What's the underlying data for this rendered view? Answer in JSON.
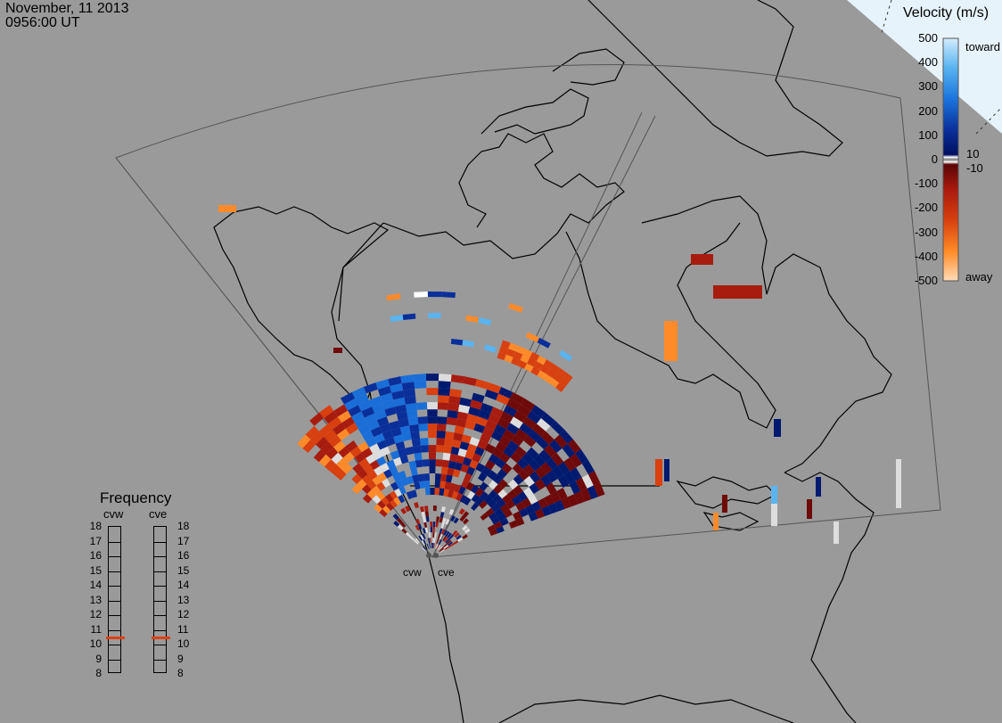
{
  "header": {
    "date": "November, 11 2013",
    "time": "0956:00 UT"
  },
  "colors": {
    "background": "#9a9a9a",
    "day_region": "#e6f3fb"
  },
  "velocity_scale": {
    "title": "Velocity (m/s)",
    "ticks": [
      "500",
      "400",
      "300",
      "200",
      "100",
      "0",
      "-100",
      "-200",
      "-300",
      "-400",
      "-500"
    ],
    "toward_label": "toward",
    "away_label": "away",
    "low_plus": "10",
    "low_minus": "-10",
    "gradient_toward": [
      "#c6e6fa",
      "#5ab4f0",
      "#1a6ed8",
      "#0a2f9a",
      "#001a70"
    ],
    "gradient_away": [
      "#6e0a0a",
      "#a81c10",
      "#d84010",
      "#ff8a2a",
      "#ffd8b0"
    ]
  },
  "frequency_panel": {
    "title": "Frequency",
    "radars": [
      {
        "name": "cvw",
        "value_mhz": 10.5
      },
      {
        "name": "cve",
        "value_mhz": 10.5
      }
    ],
    "scale": [
      "18",
      "17",
      "16",
      "15",
      "14",
      "13",
      "12",
      "11",
      "10",
      "9",
      "8"
    ],
    "marker_color": "#e04010"
  },
  "radar_sites": [
    "cvw",
    "cve"
  ],
  "chart_data": {
    "type": "heatmap",
    "title": "November, 11 2013 0956:00 UT",
    "colorbar_label": "Velocity (m/s)",
    "colorbar_range": [
      -500,
      500
    ],
    "colorbar_ticks": [
      500,
      400,
      300,
      200,
      100,
      0,
      -100,
      -200,
      -300,
      -400,
      -500
    ],
    "colorbar_ends": {
      "positive": "toward",
      "negative": "away"
    },
    "low_velocity_band": [
      -10,
      10
    ]
  }
}
